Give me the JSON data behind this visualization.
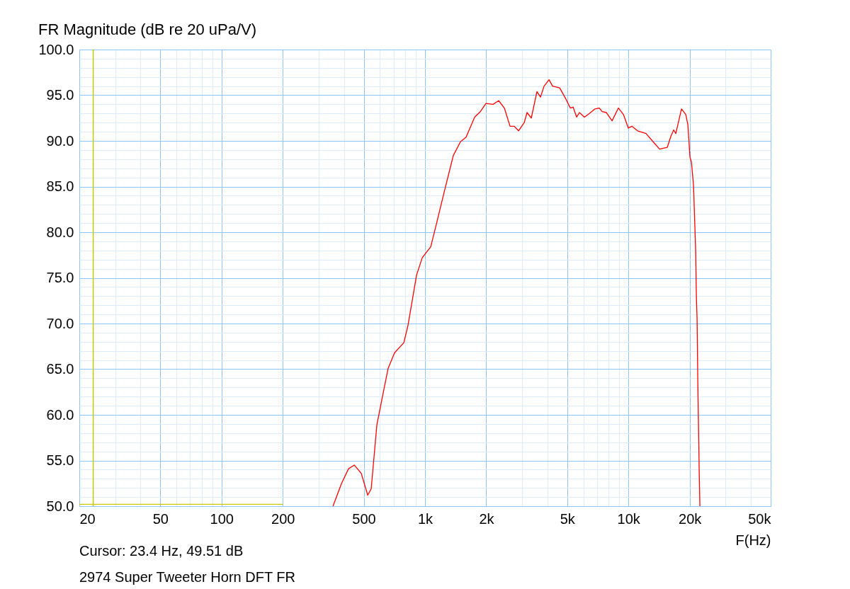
{
  "chart_data": {
    "type": "line",
    "title": "FR Magnitude (dB re 20 uPa/V)",
    "xlabel": "F(Hz)",
    "annotations": [
      "Cursor:    23.4 Hz, 49.51 dB",
      "2974 Super Tweeter Horn  DFT FR"
    ],
    "log": "x",
    "grid": true,
    "xlim": [
      20,
      50000
    ],
    "ylim": [
      50,
      100
    ],
    "xticks": [
      20,
      {
        "value": 30,
        "label": null
      },
      {
        "value": 40,
        "label": null
      },
      50,
      {
        "value": 60,
        "label": null
      },
      {
        "value": 70,
        "label": null
      },
      {
        "value": 80,
        "label": null
      },
      {
        "value": 90,
        "label": null
      },
      100,
      200,
      {
        "value": 300,
        "label": null
      },
      {
        "value": 400,
        "label": null
      },
      500,
      {
        "value": 600,
        "label": null
      },
      {
        "value": 700,
        "label": null
      },
      {
        "value": 800,
        "label": null
      },
      {
        "value": 900,
        "label": null
      },
      {
        "value": 1000,
        "label": "1k"
      },
      {
        "value": 2000,
        "label": "2k"
      },
      {
        "value": 3000,
        "label": null
      },
      {
        "value": 4000,
        "label": null
      },
      {
        "value": 5000,
        "label": "5k"
      },
      {
        "value": 6000,
        "label": null
      },
      {
        "value": 7000,
        "label": null
      },
      {
        "value": 8000,
        "label": null
      },
      {
        "value": 9000,
        "label": null
      },
      {
        "value": 10000,
        "label": "10k"
      },
      {
        "value": 20000,
        "label": "20k"
      },
      {
        "value": 30000,
        "label": null
      },
      {
        "value": 40000,
        "label": null
      },
      {
        "value": 50000,
        "label": "50k"
      }
    ],
    "yticks": [
      {
        "value": 50,
        "label": "50.0"
      },
      {
        "value": 51,
        "label": null
      },
      {
        "value": 52,
        "label": null
      },
      {
        "value": 53,
        "label": null
      },
      {
        "value": 54,
        "label": null
      },
      {
        "value": 55,
        "label": "55.0"
      },
      {
        "value": 56,
        "label": null
      },
      {
        "value": 57,
        "label": null
      },
      {
        "value": 58,
        "label": null
      },
      {
        "value": 59,
        "label": null
      },
      {
        "value": 60,
        "label": "60.0"
      },
      {
        "value": 61,
        "label": null
      },
      {
        "value": 62,
        "label": null
      },
      {
        "value": 63,
        "label": null
      },
      {
        "value": 64,
        "label": null
      },
      {
        "value": 65,
        "label": "65.0"
      },
      {
        "value": 66,
        "label": null
      },
      {
        "value": 67,
        "label": null
      },
      {
        "value": 68,
        "label": null
      },
      {
        "value": 69,
        "label": null
      },
      {
        "value": 70,
        "label": "70.0"
      },
      {
        "value": 71,
        "label": null
      },
      {
        "value": 72,
        "label": null
      },
      {
        "value": 73,
        "label": null
      },
      {
        "value": 74,
        "label": null
      },
      {
        "value": 75,
        "label": "75.0"
      },
      {
        "value": 76,
        "label": null
      },
      {
        "value": 77,
        "label": null
      },
      {
        "value": 78,
        "label": null
      },
      {
        "value": 79,
        "label": null
      },
      {
        "value": 80,
        "label": "80.0"
      },
      {
        "value": 81,
        "label": null
      },
      {
        "value": 82,
        "label": null
      },
      {
        "value": 83,
        "label": null
      },
      {
        "value": 84,
        "label": null
      },
      {
        "value": 85,
        "label": "85.0"
      },
      {
        "value": 86,
        "label": null
      },
      {
        "value": 87,
        "label": null
      },
      {
        "value": 88,
        "label": null
      },
      {
        "value": 89,
        "label": null
      },
      {
        "value": 90,
        "label": "90.0"
      },
      {
        "value": 91,
        "label": null
      },
      {
        "value": 92,
        "label": null
      },
      {
        "value": 93,
        "label": null
      },
      {
        "value": 94,
        "label": null
      },
      {
        "value": 95,
        "label": "95.0"
      },
      {
        "value": 96,
        "label": null
      },
      {
        "value": 97,
        "label": null
      },
      {
        "value": 98,
        "label": null
      },
      {
        "value": 99,
        "label": null
      },
      {
        "value": 100,
        "label": "100.0"
      }
    ],
    "ref_lines": [
      {
        "axis": "x",
        "value": 23.4,
        "color": "#c8c800"
      }
    ],
    "series": [
      {
        "color": "#ff0000",
        "x": [
          353,
          389,
          421,
          449,
          486,
          523,
          544,
          580,
          618,
          659,
          709,
          787,
          825,
          909,
          969,
          1067,
          1138,
          1252,
          1378,
          1494,
          1592,
          1754,
          1870,
          1994,
          2160,
          2302,
          2455,
          2618,
          2748,
          2883,
          3074,
          3174,
          3330,
          3550,
          3696,
          3848,
          4070,
          4236,
          4590,
          4894,
          5176,
          5346,
          5564,
          5744,
          6076,
          6428,
          6852,
          7190,
          7424,
          7790,
          8308,
          8926,
          9442,
          9986,
          10394,
          11086,
          12204,
          13224,
          14218,
          15524,
          16160,
          16686,
          17092,
          18226,
          19124,
          19586,
          20064,
          20390,
          20886,
          21392,
          21566,
          21742,
          21918,
          22272,
          22450
        ],
        "values": [
          50.0,
          52.5,
          54.1,
          54.5,
          53.6,
          51.2,
          51.9,
          58.9,
          62.0,
          65.1,
          66.8,
          67.9,
          69.8,
          75.3,
          77.2,
          78.4,
          80.9,
          84.7,
          88.4,
          89.9,
          90.4,
          92.6,
          93.2,
          94.1,
          94.0,
          94.4,
          93.6,
          91.6,
          91.6,
          91.1,
          92.0,
          93.1,
          92.5,
          95.4,
          94.8,
          96.0,
          96.7,
          96.0,
          95.8,
          94.7,
          93.6,
          93.7,
          92.6,
          93.1,
          92.6,
          93.0,
          93.5,
          93.6,
          93.2,
          93.1,
          92.2,
          93.6,
          92.9,
          91.4,
          91.6,
          91.1,
          90.8,
          89.9,
          89.1,
          89.3,
          90.5,
          91.2,
          90.8,
          93.5,
          92.9,
          91.8,
          88.2,
          87.7,
          85.1,
          78.0,
          73.0,
          70.5,
          63.7,
          53.8,
          50.0
        ]
      },
      {
        "color": "#c8c800",
        "x": [
          20,
          200
        ],
        "values": [
          50.2,
          50.2
        ]
      }
    ]
  }
}
